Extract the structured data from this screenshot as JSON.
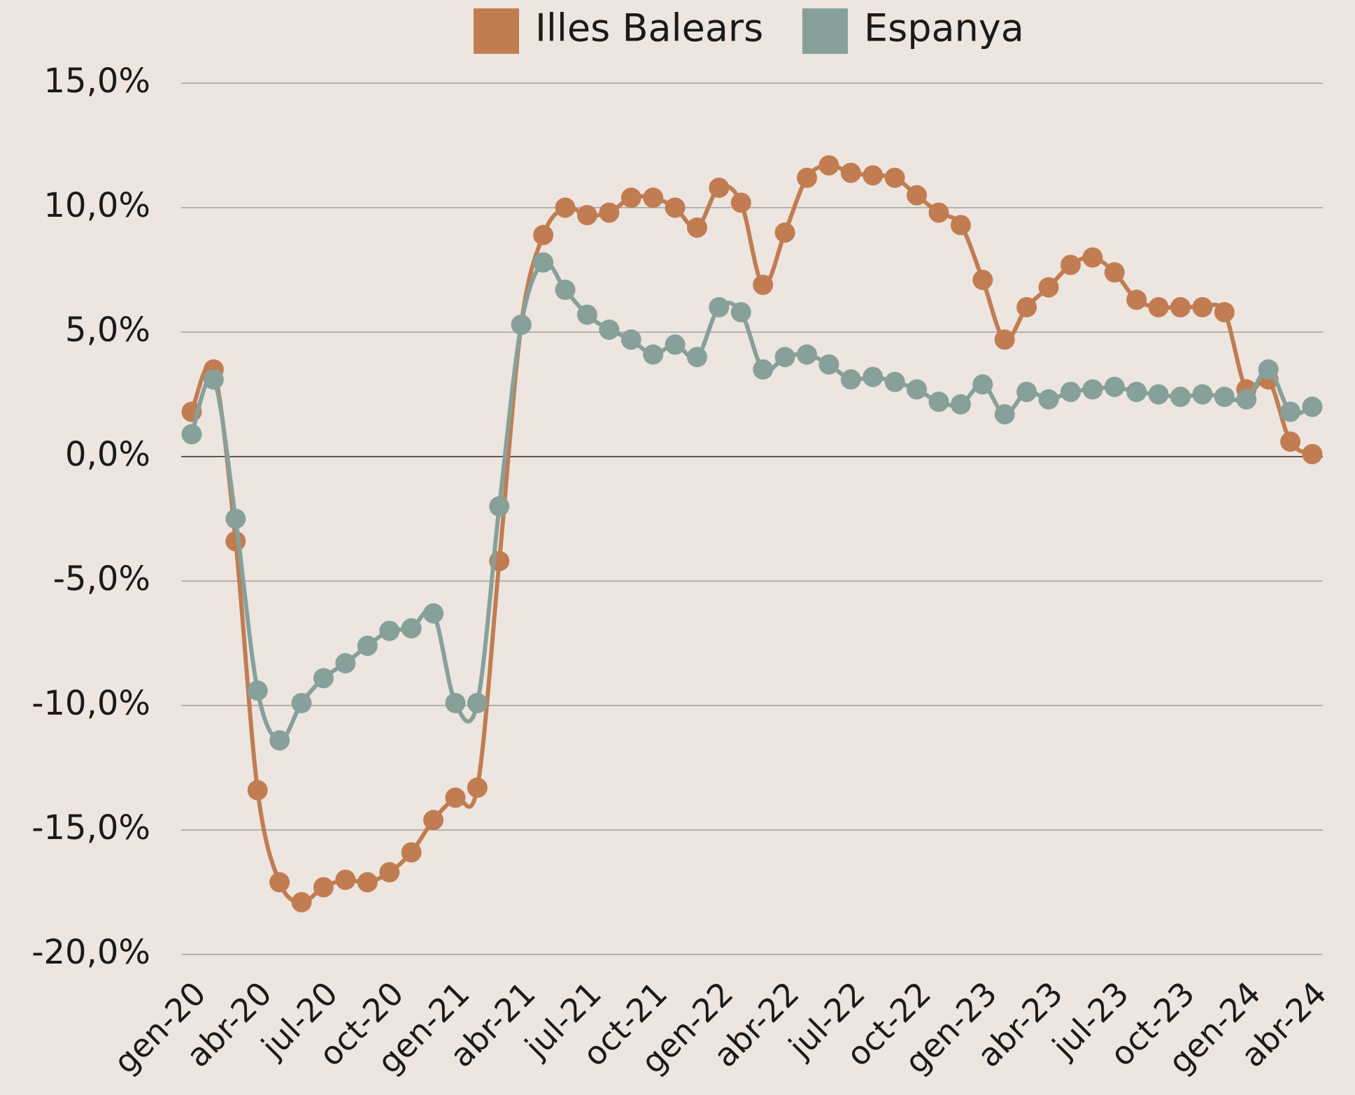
{
  "chart_data": {
    "type": "line",
    "categories": [
      "gen-20",
      null,
      null,
      "abr-20",
      null,
      null,
      "jul-20",
      null,
      null,
      "oct-20",
      null,
      null,
      "gen-21",
      null,
      null,
      "abr-21",
      null,
      null,
      "jul-21",
      null,
      null,
      "oct-21",
      null,
      null,
      "gen-22",
      null,
      null,
      "abr-22",
      null,
      null,
      "jul-22",
      null,
      null,
      "oct-22",
      null,
      null,
      "gen-23",
      null,
      null,
      "abr-23",
      null,
      null,
      "jul-23",
      null,
      null,
      "oct-23",
      null,
      null,
      "gen-24",
      null,
      null,
      "abr-24"
    ],
    "series": [
      {
        "name": "Illes Balears",
        "color": "#c17d51",
        "values": [
          1.8,
          3.5,
          -3.4,
          -13.4,
          -17.1,
          -17.9,
          -17.3,
          -17.0,
          -17.1,
          -16.7,
          -15.9,
          -14.6,
          -13.7,
          -13.3,
          -4.2,
          5.3,
          8.9,
          10.0,
          9.7,
          9.8,
          10.4,
          10.4,
          10.0,
          9.2,
          10.8,
          10.2,
          6.9,
          9.0,
          11.2,
          11.7,
          11.4,
          11.3,
          11.2,
          10.5,
          9.8,
          9.3,
          7.1,
          4.7,
          6.0,
          6.8,
          7.7,
          8.0,
          7.4,
          6.3,
          6.0,
          6.0,
          6.0,
          5.8,
          2.7,
          3.1,
          0.6,
          0.1
        ]
      },
      {
        "name": "Espanya",
        "color": "#87a09a",
        "values": [
          0.9,
          3.1,
          -2.5,
          -9.4,
          -11.4,
          -9.9,
          -8.9,
          -8.3,
          -7.6,
          -7.0,
          -6.9,
          -6.3,
          -9.9,
          -9.9,
          -2.0,
          5.3,
          7.8,
          6.7,
          5.7,
          5.1,
          4.7,
          4.1,
          4.5,
          4.0,
          6.0,
          5.8,
          3.5,
          4.0,
          4.1,
          3.7,
          3.1,
          3.2,
          3.0,
          2.7,
          2.2,
          2.1,
          2.9,
          1.7,
          2.6,
          2.3,
          2.6,
          2.7,
          2.8,
          2.6,
          2.5,
          2.4,
          2.5,
          2.4,
          2.3,
          3.5,
          1.8,
          2.0
        ]
      }
    ],
    "ylim": [
      -20,
      15
    ],
    "yticks": [
      {
        "value": -20,
        "label": "-20,0%"
      },
      {
        "value": -15,
        "label": "-15,0%"
      },
      {
        "value": -10,
        "label": "-10,0%"
      },
      {
        "value": -5,
        "label": "-5,0%"
      },
      {
        "value": 0,
        "label": "0,0%"
      },
      {
        "value": 5,
        "label": "5,0%"
      },
      {
        "value": 10,
        "label": "10,0%"
      },
      {
        "value": 15,
        "label": "15,0%"
      }
    ],
    "grid": true,
    "legend": "top"
  }
}
